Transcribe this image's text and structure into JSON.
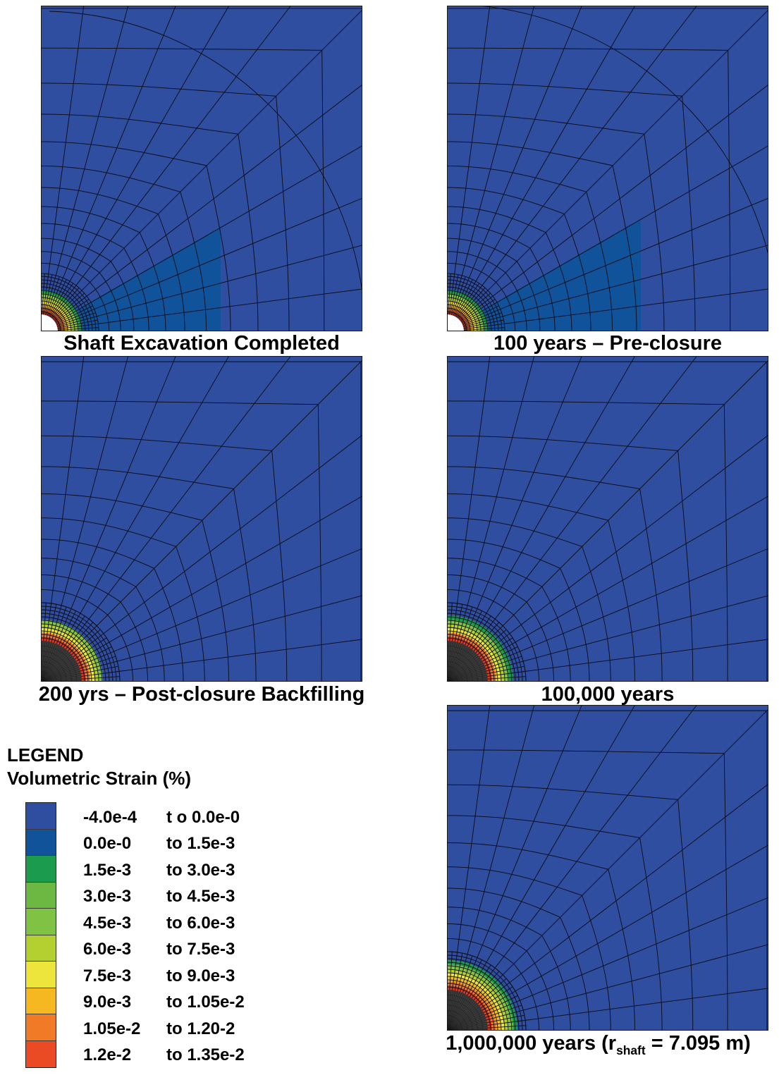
{
  "panels": [
    {
      "caption": "Shaft Excavation Completed",
      "state": "open",
      "bands": [
        {
          "color": "#d93a22"
        },
        {
          "color": "#f07a26"
        },
        {
          "color": "#f5b820"
        },
        {
          "color": "#eee53c"
        },
        {
          "color": "#b4d030"
        },
        {
          "color": "#80c244"
        },
        {
          "color": "#1b9b4e"
        }
      ],
      "arcs": true
    },
    {
      "caption": "100 years – Pre-closure",
      "state": "open",
      "bands": [
        {
          "color": "#d93a22"
        },
        {
          "color": "#f07a26"
        },
        {
          "color": "#f5b820"
        },
        {
          "color": "#eee53c"
        },
        {
          "color": "#b4d030"
        },
        {
          "color": "#80c244"
        },
        {
          "color": "#1b9b4e"
        }
      ],
      "arcs": true
    },
    {
      "caption": "200 yrs – Post-closure Backfilling",
      "state": "backfilled",
      "bands": [
        {
          "color": "#d93a22"
        },
        {
          "color": "#f07a26"
        },
        {
          "color": "#eee53c"
        },
        {
          "color": "#b4d030"
        },
        {
          "color": "#80c244"
        }
      ],
      "arcs": false
    },
    {
      "caption": "100,000 years",
      "state": "backfilled",
      "bands": [
        {
          "color": "#d93a22"
        },
        {
          "color": "#f07a26"
        },
        {
          "color": "#eee53c"
        },
        {
          "color": "#b4d030"
        },
        {
          "color": "#80c244"
        },
        {
          "color": "#1b9b4e"
        }
      ],
      "arcs": false
    },
    {
      "caption_prefix": "1,000,000 years (r",
      "caption_sub": "shaft",
      "caption_suffix": " = 7.095 m)",
      "state": "backfilled",
      "bands": [
        {
          "color": "#d93a22"
        },
        {
          "color": "#f07a26"
        },
        {
          "color": "#f5b820"
        },
        {
          "color": "#eee53c"
        },
        {
          "color": "#b4d030"
        },
        {
          "color": "#80c244"
        },
        {
          "color": "#1b9b4e"
        }
      ],
      "arcs": false
    }
  ],
  "legend": {
    "title": "LEGEND",
    "subtitle": "Volumetric Strain (%)",
    "entries": [
      {
        "from": "-4.0e-4",
        "to": "t o 0.0e-0",
        "color": "#2f4e9f"
      },
      {
        "from": "0.0e-0",
        "to": "to 1.5e-3",
        "color": "#11539a"
      },
      {
        "from": "1.5e-3",
        "to": "to 3.0e-3",
        "color": "#1b9b4e"
      },
      {
        "from": "3.0e-3",
        "to": "to 4.5e-3",
        "color": "#6cb843"
      },
      {
        "from": "4.5e-3",
        "to": "to 6.0e-3",
        "color": "#80c244"
      },
      {
        "from": "6.0e-3",
        "to": "to 7.5e-3",
        "color": "#b4d030"
      },
      {
        "from": "7.5e-3",
        "to": "to 9.0e-3",
        "color": "#eee53c"
      },
      {
        "from": "9.0e-3",
        "to": "to 1.05e-2",
        "color": "#f5b820"
      },
      {
        "from": "1.05e-2",
        "to": "to 1.20-2",
        "color": "#f07a26"
      },
      {
        "from": "1.2e-2",
        "to": "to 1.35e-2",
        "color": "#ea4a24"
      }
    ]
  },
  "colors": {
    "background": "#2f4e9f",
    "zone": "#11539a",
    "mesh": "#0a0a14",
    "shaft_fill": "#3a3a3a"
  }
}
